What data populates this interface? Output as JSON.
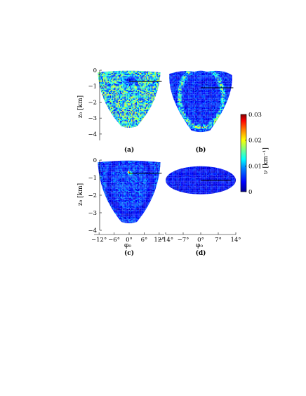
{
  "chart_data": {
    "type": "heatmap",
    "colorbar": {
      "label": "ν [km⁻¹]",
      "ticks": [
        "0.03",
        "0.02",
        "0.01",
        "0"
      ],
      "tick_values": [
        0.03,
        0.02,
        0.01,
        0
      ],
      "range": [
        0,
        0.03
      ],
      "colormap": [
        "#00008f",
        "#0000ff",
        "#0080ff",
        "#00ffff",
        "#80ff80",
        "#ffff00",
        "#ff8000",
        "#ff0000",
        "#800000"
      ]
    },
    "y_axis_label": "z₀ [km]",
    "x_axis_label": "φ₀",
    "panels": [
      {
        "id": "a",
        "label": "(a)",
        "yticks": [
          "0",
          "−1",
          "−2",
          "−3",
          "−4"
        ],
        "ytick_values": [
          0,
          -1,
          -2,
          -3,
          -4
        ],
        "ylim": [
          -4.4,
          0
        ],
        "xticks": [],
        "xtick_values": [],
        "xlim": [
          -14,
          14
        ],
        "shape": "shell",
        "shell": {
          "top": -0.05,
          "bottom": -3.6,
          "half_width": 12.5
        },
        "base_level": 0.012,
        "features": [
          {
            "kind": "dense-blob",
            "x": 0,
            "z": -0.6,
            "level": 0.003
          }
        ],
        "black_line": {
          "x": [
            0,
            13
          ],
          "z": [
            -0.7,
            -0.7
          ]
        }
      },
      {
        "id": "b",
        "label": "(b)",
        "yticks": [],
        "ytick_values": [],
        "ylim": [
          -4.4,
          0
        ],
        "xticks": [],
        "xtick_values": [],
        "xlim": [
          -14,
          14
        ],
        "shape": "heart",
        "shell": {
          "top": -0.05,
          "bottom": -3.9,
          "half_width": 12.5
        },
        "base_level": 0.005,
        "features": [
          {
            "kind": "ring",
            "level": 0.014
          }
        ],
        "black_line": {
          "x": [
            0,
            13
          ],
          "z": [
            -1.1,
            -1.1
          ]
        }
      },
      {
        "id": "c",
        "label": "(c)",
        "yticks": [
          "0",
          "−1",
          "−2",
          "−3",
          "−4"
        ],
        "ytick_values": [
          0,
          -1,
          -2,
          -3,
          -4
        ],
        "ylim": [
          -4,
          0
        ],
        "xticks": [
          "−12°",
          "−6°",
          "0°",
          "6°",
          "12°"
        ],
        "xtick_values": [
          -12,
          -6,
          0,
          6,
          12
        ],
        "xlim": [
          -14,
          14
        ],
        "shape": "shell",
        "shell": {
          "top": -0.05,
          "bottom": -3.6,
          "half_width": 12.5
        },
        "base_level": 0.006,
        "features": [
          {
            "kind": "hotspot",
            "x": 0,
            "z": -0.7,
            "level": 0.02
          },
          {
            "kind": "dark-band",
            "level": 0.003
          }
        ],
        "black_line": {
          "x": [
            0,
            13
          ],
          "z": [
            -0.75,
            -0.75
          ]
        }
      },
      {
        "id": "d",
        "label": "(d)",
        "yticks": [],
        "ytick_values": [],
        "ylim": [
          -4,
          0
        ],
        "xticks": [
          "−14°",
          "−7°",
          "0°",
          "7°",
          "14°"
        ],
        "xtick_values": [
          -14,
          -7,
          0,
          7,
          14
        ],
        "xlim": [
          -14,
          14
        ],
        "shape": "ellipse",
        "shell": {
          "top": -0.35,
          "bottom": -1.95,
          "half_width": 14
        },
        "base_level": 0.004,
        "features": [],
        "black_line": {
          "x": [
            0,
            12
          ],
          "z": [
            -1.15,
            -1.15
          ]
        }
      }
    ]
  }
}
